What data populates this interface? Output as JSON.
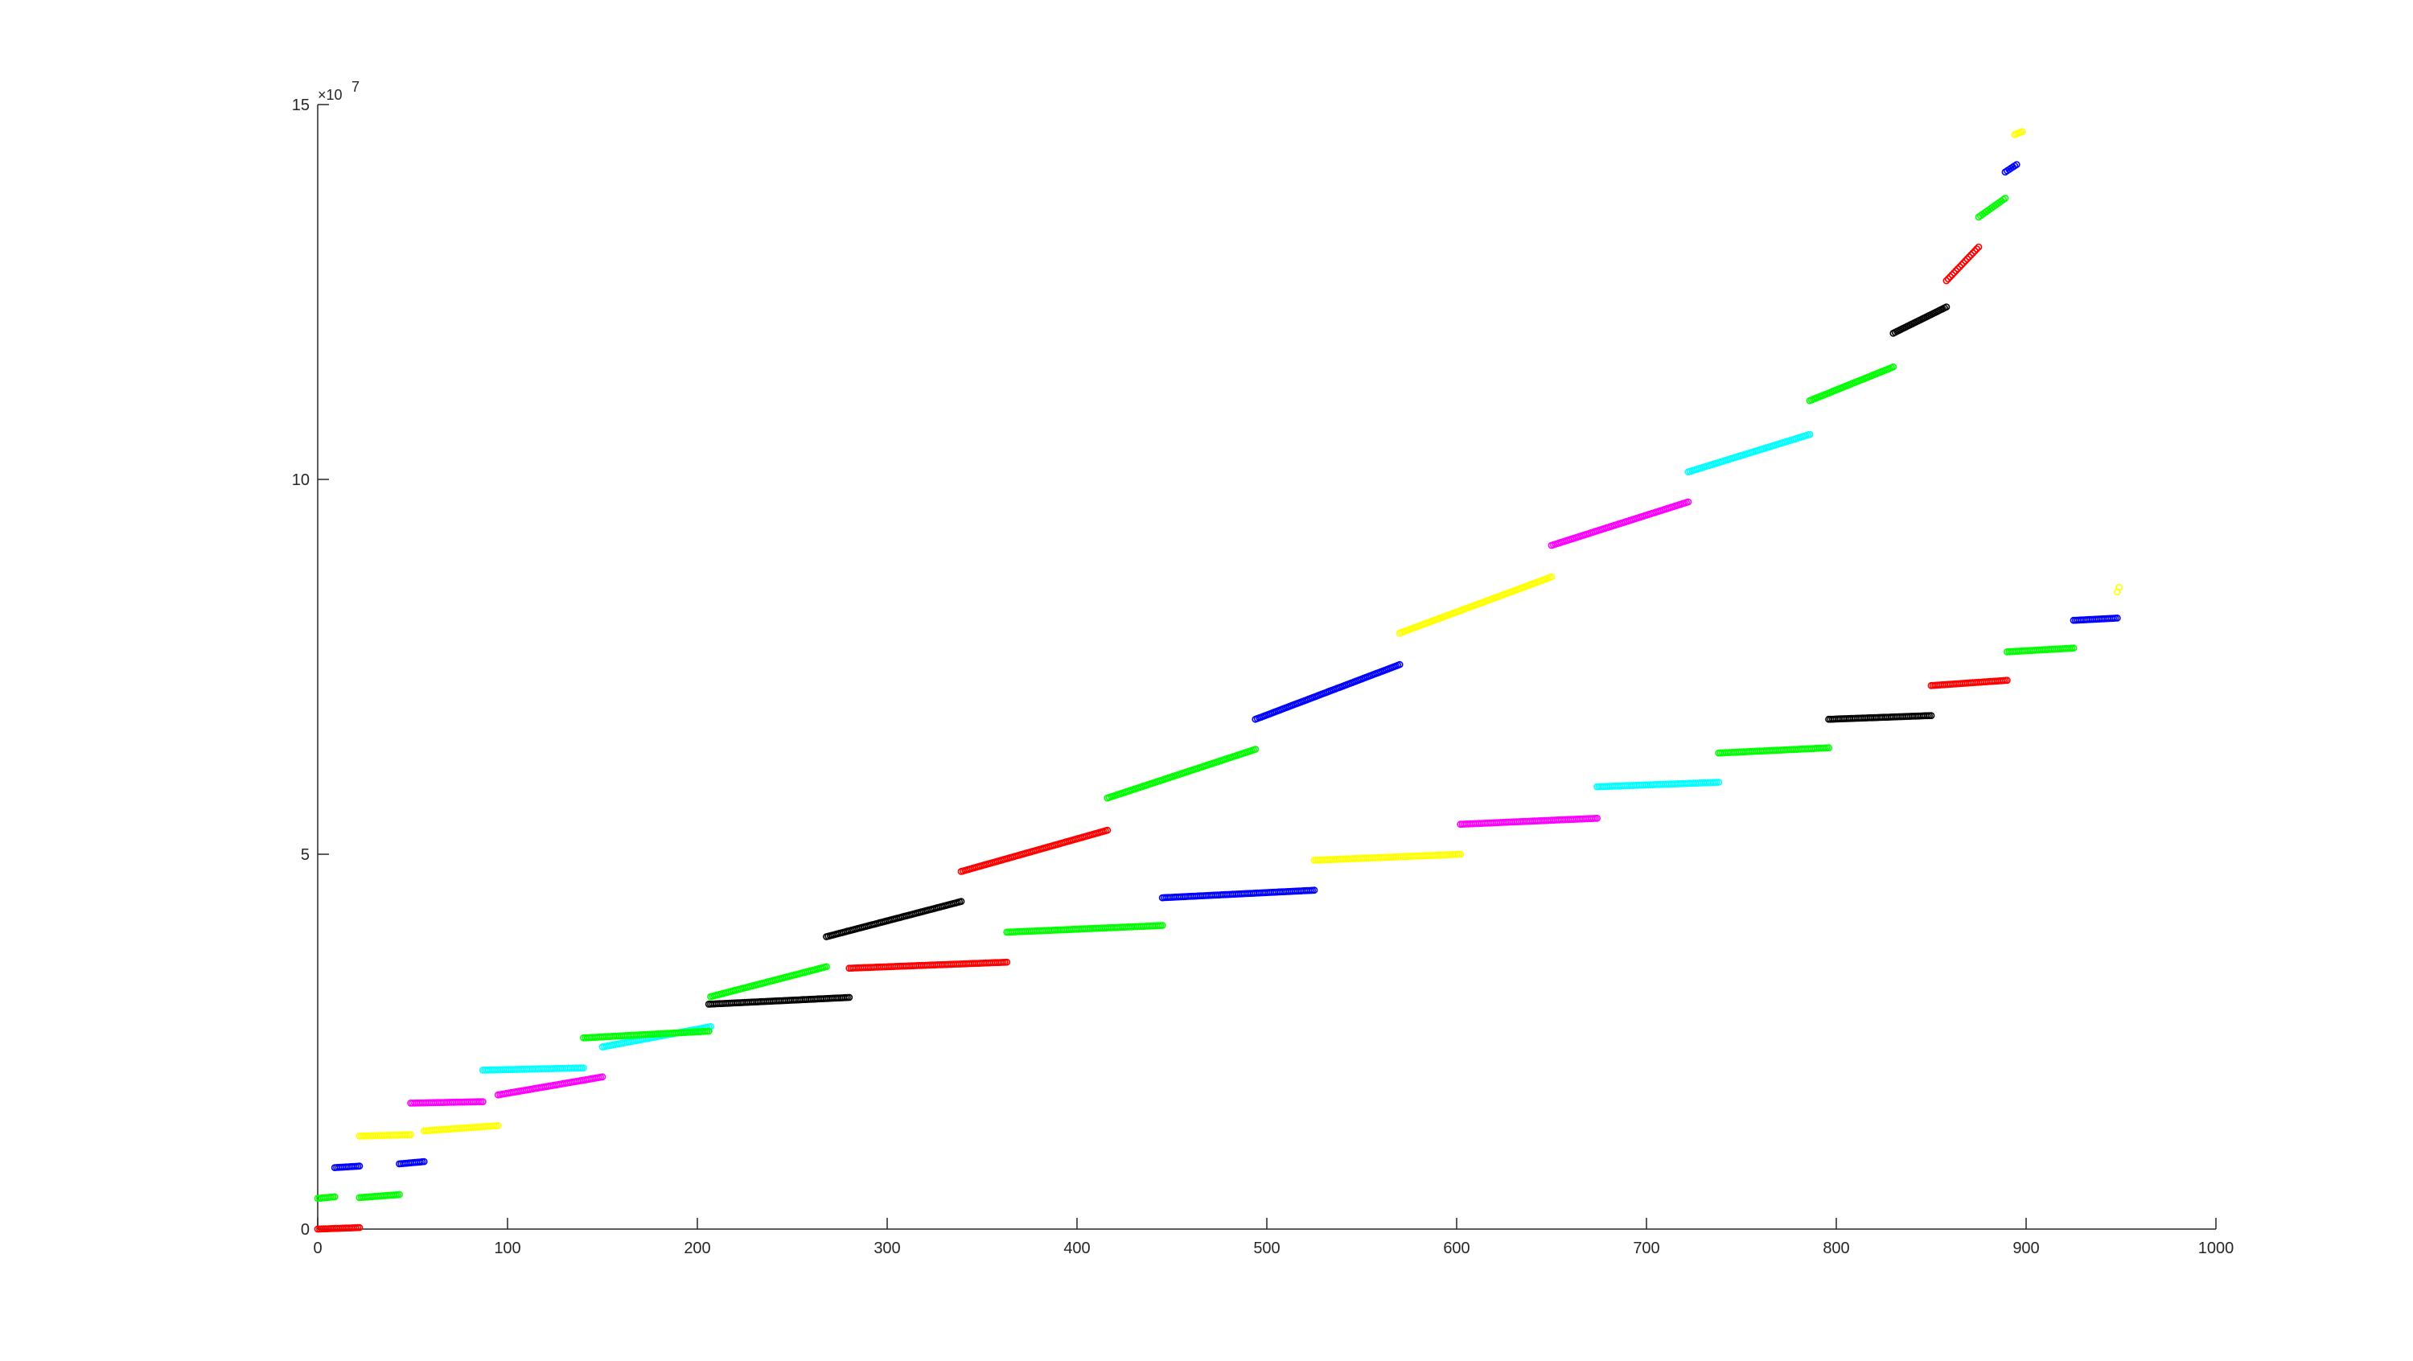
{
  "chart_data": {
    "type": "scatter",
    "title": "",
    "xlabel": "",
    "ylabel": "",
    "xlim": [
      0,
      1000
    ],
    "ylim": [
      0,
      150000000
    ],
    "xticks": [
      0,
      100,
      200,
      300,
      400,
      500,
      600,
      700,
      800,
      900,
      1000
    ],
    "yticks": [
      0,
      50000000,
      100000000,
      150000000
    ],
    "xtick_labels": [
      "0",
      "100",
      "200",
      "300",
      "400",
      "500",
      "600",
      "700",
      "800",
      "900",
      "1000"
    ],
    "ytick_labels": [
      "0",
      "5",
      "10",
      "15"
    ],
    "y_exponent": {
      "base": "×10",
      "power": "7"
    },
    "grid": false,
    "legend": "none",
    "marker": "circle-open",
    "colors": {
      "red": "#ff0000",
      "green": "#00ff00",
      "blue": "#0000ff",
      "yellow": "#ffff00",
      "magenta": "#ff00ff",
      "cyan": "#00ffff",
      "black": "#000000"
    },
    "series": [
      {
        "color": "red",
        "x": [
          0,
          22
        ],
        "y": [
          0,
          200000
        ]
      },
      {
        "color": "green",
        "x": [
          0,
          9
        ],
        "y": [
          4100000,
          4300000
        ]
      },
      {
        "color": "green",
        "x": [
          22,
          43
        ],
        "y": [
          4200000,
          4600000
        ]
      },
      {
        "color": "blue",
        "x": [
          9,
          22
        ],
        "y": [
          8200000,
          8400000
        ]
      },
      {
        "color": "blue",
        "x": [
          43,
          56
        ],
        "y": [
          8700000,
          9000000
        ]
      },
      {
        "color": "yellow",
        "x": [
          22,
          49
        ],
        "y": [
          12400000,
          12600000
        ]
      },
      {
        "color": "yellow",
        "x": [
          56,
          95
        ],
        "y": [
          13100000,
          13800000
        ]
      },
      {
        "color": "magenta",
        "x": [
          49,
          87
        ],
        "y": [
          16800000,
          17000000
        ]
      },
      {
        "color": "magenta",
        "x": [
          95,
          150
        ],
        "y": [
          17900000,
          20300000
        ]
      },
      {
        "color": "cyan",
        "x": [
          87,
          140
        ],
        "y": [
          21200000,
          21500000
        ]
      },
      {
        "color": "cyan",
        "x": [
          150,
          207
        ],
        "y": [
          24300000,
          27000000
        ]
      },
      {
        "color": "green",
        "x": [
          140,
          206
        ],
        "y": [
          25500000,
          26400000
        ]
      },
      {
        "color": "green",
        "x": [
          207,
          268
        ],
        "y": [
          31000000,
          35000000
        ]
      },
      {
        "color": "black",
        "x": [
          206,
          280
        ],
        "y": [
          30000000,
          30900000
        ]
      },
      {
        "color": "black",
        "x": [
          268,
          339
        ],
        "y": [
          39000000,
          43700000
        ]
      },
      {
        "color": "red",
        "x": [
          280,
          363
        ],
        "y": [
          34800000,
          35600000
        ]
      },
      {
        "color": "red",
        "x": [
          339,
          416
        ],
        "y": [
          47700000,
          53200000
        ]
      },
      {
        "color": "green",
        "x": [
          363,
          445
        ],
        "y": [
          39600000,
          40500000
        ]
      },
      {
        "color": "green",
        "x": [
          416,
          494
        ],
        "y": [
          57500000,
          64000000
        ]
      },
      {
        "color": "blue",
        "x": [
          445,
          525
        ],
        "y": [
          44200000,
          45200000
        ]
      },
      {
        "color": "blue",
        "x": [
          494,
          570
        ],
        "y": [
          68000000,
          75300000
        ]
      },
      {
        "color": "yellow",
        "x": [
          525,
          602
        ],
        "y": [
          49200000,
          50000000
        ]
      },
      {
        "color": "yellow",
        "x": [
          570,
          650
        ],
        "y": [
          79500000,
          87000000
        ]
      },
      {
        "color": "magenta",
        "x": [
          602,
          674
        ],
        "y": [
          54000000,
          54800000
        ]
      },
      {
        "color": "magenta",
        "x": [
          650,
          722
        ],
        "y": [
          91200000,
          97000000
        ]
      },
      {
        "color": "cyan",
        "x": [
          674,
          738
        ],
        "y": [
          59000000,
          59600000
        ]
      },
      {
        "color": "cyan",
        "x": [
          722,
          786
        ],
        "y": [
          101000000,
          106000000
        ]
      },
      {
        "color": "green",
        "x": [
          738,
          796
        ],
        "y": [
          63500000,
          64200000
        ]
      },
      {
        "color": "green",
        "x": [
          786,
          830
        ],
        "y": [
          110500000,
          115000000
        ]
      },
      {
        "color": "black",
        "x": [
          796,
          850
        ],
        "y": [
          68000000,
          68500000
        ]
      },
      {
        "color": "black",
        "x": [
          830,
          858
        ],
        "y": [
          119500000,
          123000000
        ]
      },
      {
        "color": "red",
        "x": [
          850,
          890
        ],
        "y": [
          72500000,
          73200000
        ]
      },
      {
        "color": "red",
        "x": [
          858,
          875
        ],
        "y": [
          126500000,
          131000000
        ]
      },
      {
        "color": "green",
        "x": [
          890,
          925
        ],
        "y": [
          77000000,
          77500000
        ]
      },
      {
        "color": "green",
        "x": [
          875,
          889
        ],
        "y": [
          135000000,
          137500000
        ]
      },
      {
        "color": "blue",
        "x": [
          925,
          948
        ],
        "y": [
          81200000,
          81500000
        ]
      },
      {
        "color": "blue",
        "x": [
          889,
          895
        ],
        "y": [
          141000000,
          142000000
        ]
      },
      {
        "color": "yellow",
        "x": [
          948,
          949
        ],
        "y": [
          85000000,
          85600000
        ]
      },
      {
        "color": "yellow",
        "x": [
          894,
          898
        ],
        "y": [
          146000000,
          146400000
        ]
      }
    ]
  }
}
